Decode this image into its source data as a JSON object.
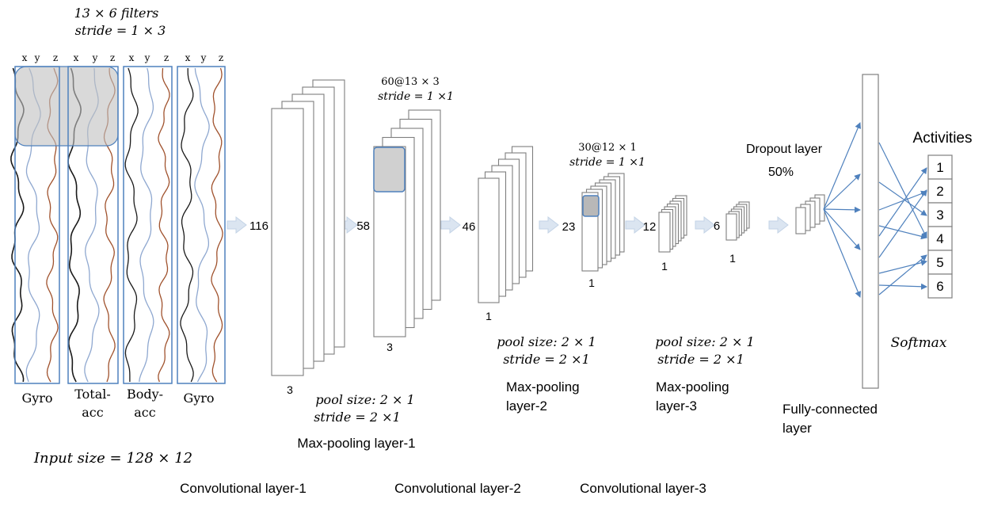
{
  "input": {
    "filter_line1": "13 × 6 filters",
    "filter_line2": "stride = 1 × 3",
    "axis_labels": [
      "x",
      "y",
      "z",
      "x",
      "y",
      "z",
      "x",
      "y",
      "z",
      "x",
      "y",
      "z"
    ],
    "group_labels": [
      [
        "Gyro"
      ],
      [
        "Total-",
        "acc"
      ],
      [
        "Body-",
        "acc"
      ],
      [
        "Gyro"
      ]
    ],
    "size_label": "Input size = 128 × 12"
  },
  "conv1": {
    "height_label": "116",
    "width_label": "3"
  },
  "pool1": {
    "line1": "pool size: 2 × 1",
    "line2": "stride = 2 ×1",
    "name": "Max-pooling layer-1"
  },
  "conv2": {
    "filter_line1": "60@13 × 3",
    "filter_line2": "stride = 1 ×1",
    "height_label": "58",
    "width_label": "3"
  },
  "pool2": {
    "height_label": "46",
    "width_label": "1",
    "line1": "pool size: 2 × 1",
    "line2": "stride = 2 ×1",
    "name_line1": "Max-pooling",
    "name_line2": "layer-2"
  },
  "conv3": {
    "filter_line1": "30@12 × 1",
    "filter_line2": "stride = 1 ×1",
    "height_label": "23",
    "width_label": "1"
  },
  "pool3": {
    "height_label": "12",
    "width_label": "1",
    "line1": "pool size: 2 × 1",
    "line2": "stride = 2 ×1",
    "name_line1": "Max-pooling",
    "name_line2": "layer-3"
  },
  "dropout": {
    "height_label": "6",
    "width_label": "1",
    "name": "Dropout layer",
    "rate": "50%"
  },
  "fc": {
    "name_line1": "Fully-connected",
    "name_line2": "layer",
    "softmax": "Softmax"
  },
  "activities": {
    "title": "Activities",
    "items": [
      "1",
      "2",
      "3",
      "4",
      "5",
      "6"
    ]
  },
  "bottom_labels": [
    "Convolutional layer-1",
    "Convolutional layer-2",
    "Convolutional layer-3"
  ],
  "colors": {
    "line": "#7f7f7f",
    "accent": "#4f81bd",
    "arrow_fill": "#dbe5f1",
    "shade": "#d9d9d9",
    "wave_brown": "#a0522d",
    "wave_blue": "#8fa8d0",
    "wave_black": "#1a1a1a"
  }
}
